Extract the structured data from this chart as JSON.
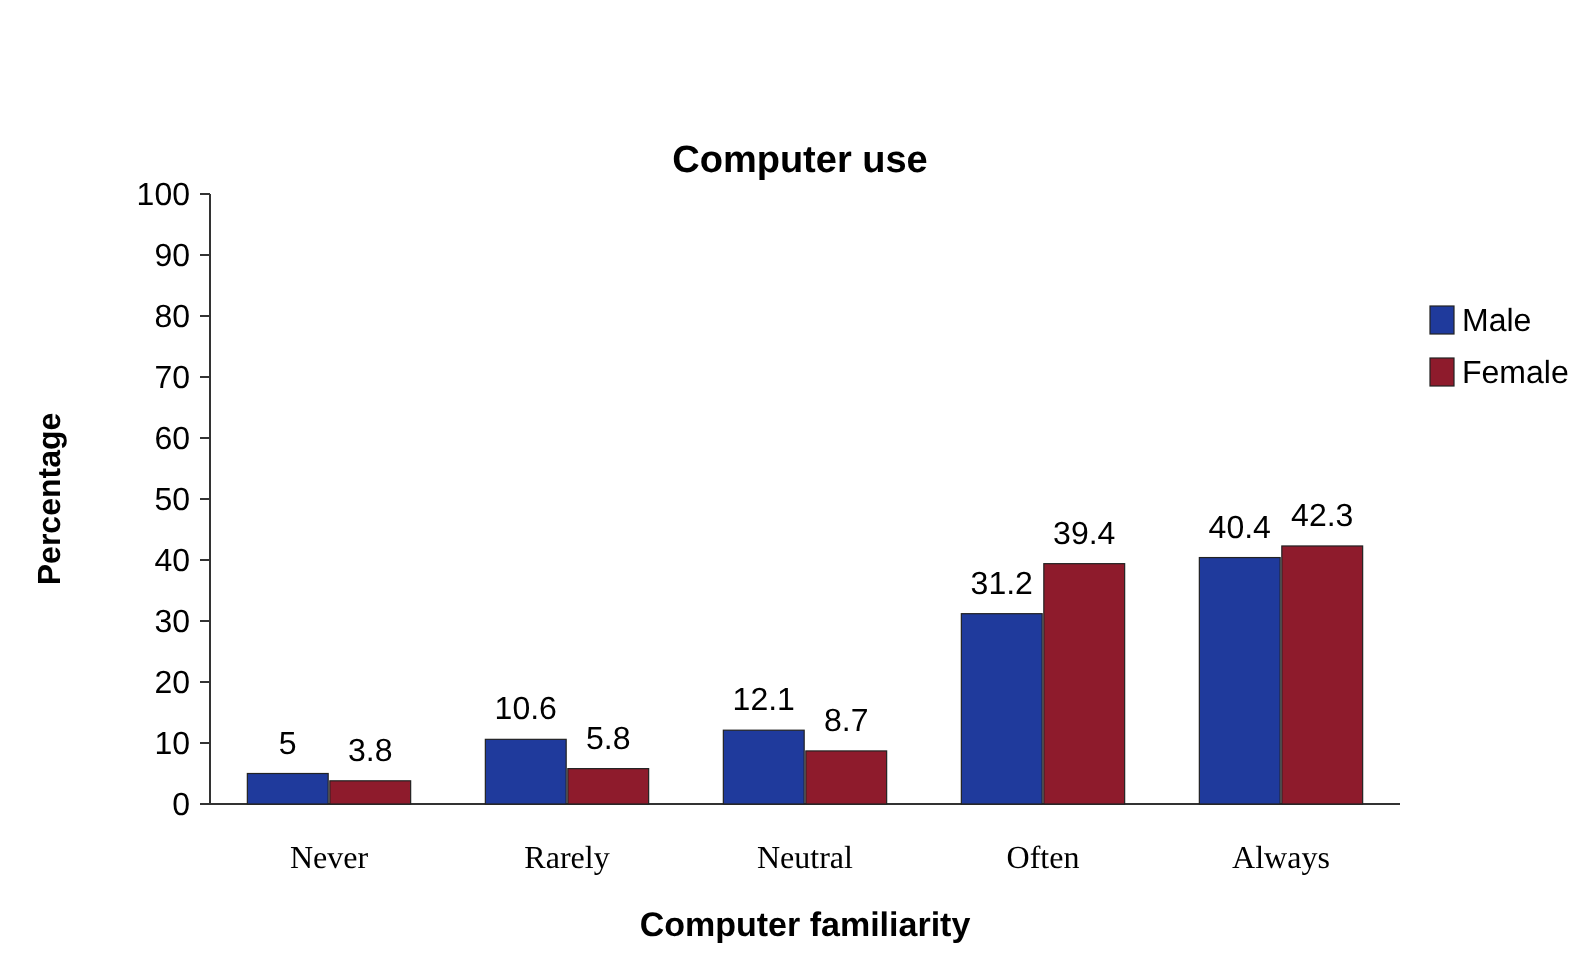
{
  "chart_data": {
    "type": "bar",
    "title": "Computer use",
    "xlabel": "Computer familiarity",
    "ylabel": "Percentage",
    "categories": [
      "Never",
      "Rarely",
      "Neutral",
      "Often",
      "Always"
    ],
    "series": [
      {
        "name": "Male",
        "color": "#1f3a9c",
        "values": [
          5,
          10.6,
          12.1,
          31.2,
          40.4
        ]
      },
      {
        "name": "Female",
        "color": "#8e1b2c",
        "values": [
          3.8,
          5.8,
          8.7,
          39.4,
          42.3
        ]
      }
    ],
    "ylim": [
      0,
      100
    ],
    "yticks": [
      0,
      10,
      20,
      30,
      40,
      50,
      60,
      70,
      80,
      90,
      100
    ],
    "data_labels": true,
    "legend": "right"
  }
}
